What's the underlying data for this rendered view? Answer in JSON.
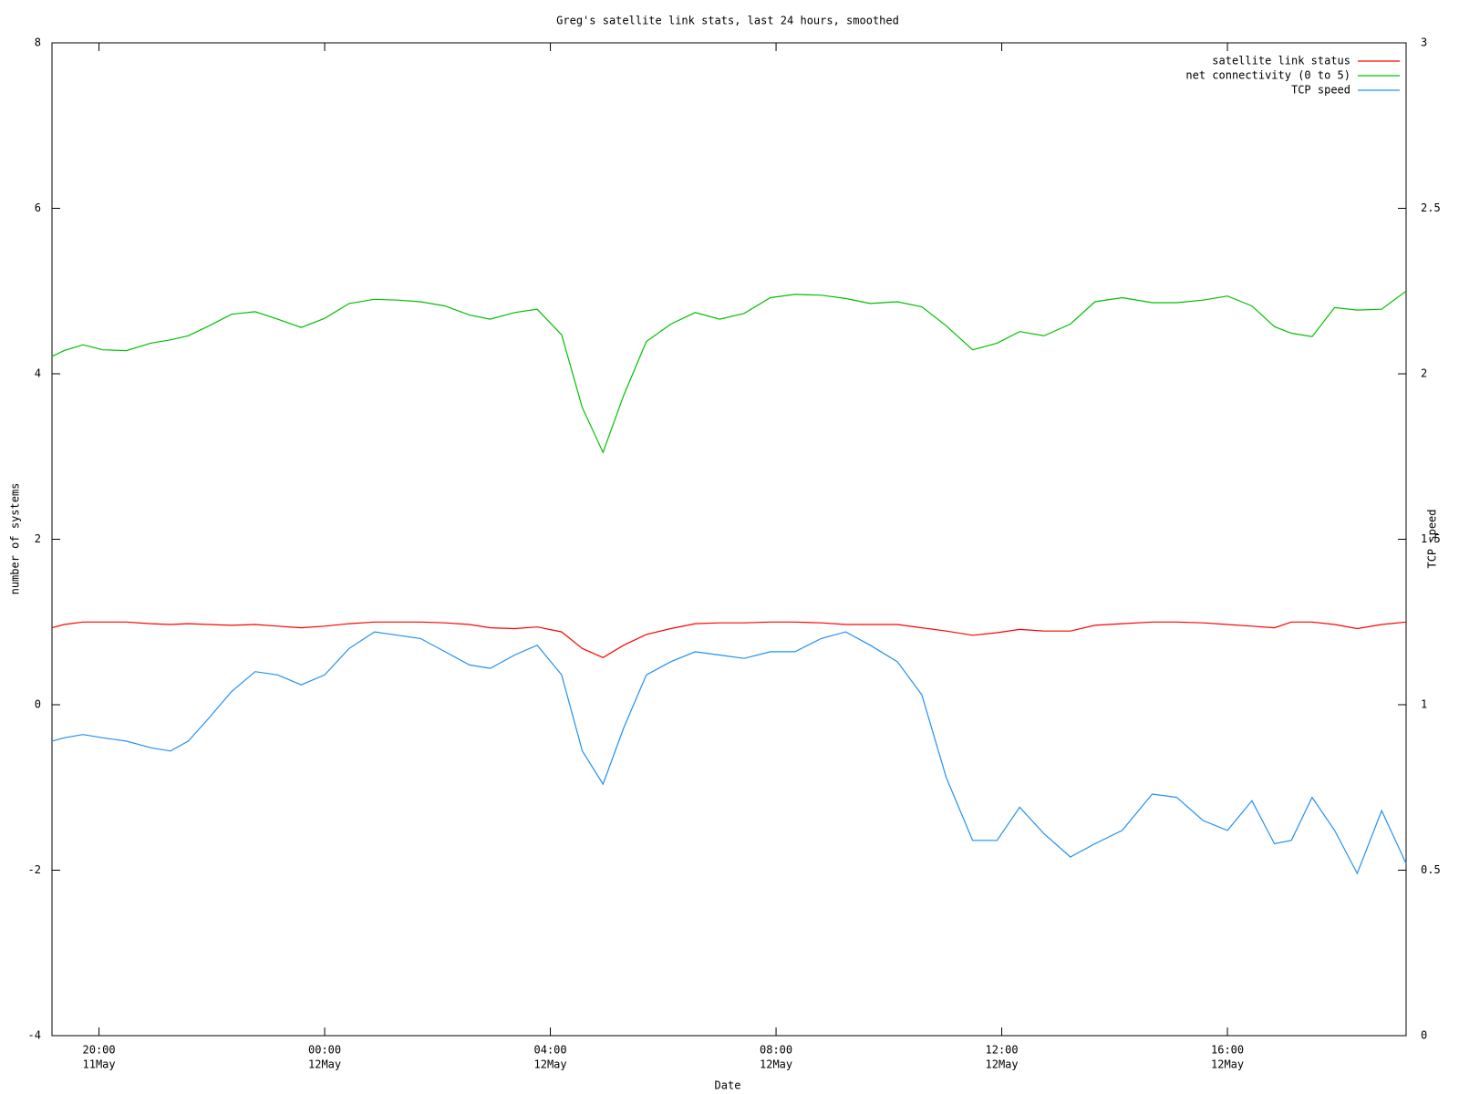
{
  "chart_data": {
    "type": "line",
    "title": "Greg's satellite link stats, last 24 hours, smoothed",
    "xlabel": "Date",
    "ylabel": "number of systems",
    "y2label": "TCP speed",
    "legend": "top right",
    "x": [
      "11May 19:10",
      "11May 19:23",
      "11May 19:43",
      "11May 20:04",
      "11May 20:29",
      "11May 20:55",
      "11May 21:16",
      "11May 21:35",
      "11May 21:57",
      "11May 22:21",
      "11May 22:46",
      "11May 23:10",
      "11May 23:35",
      "12May 00:00",
      "12May 00:26",
      "12May 00:53",
      "12May 01:18",
      "12May 01:42",
      "12May 02:08",
      "12May 02:34",
      "12May 02:56",
      "12May 03:22",
      "12May 03:46",
      "12May 04:12",
      "12May 04:34",
      "12May 04:56",
      "12May 05:18",
      "12May 05:42",
      "12May 06:08",
      "12May 06:34",
      "12May 07:00",
      "12May 07:26",
      "12May 07:54",
      "12May 08:20",
      "12May 08:48",
      "12May 09:14",
      "12May 09:40",
      "12May 10:09",
      "12May 10:35",
      "12May 11:01",
      "12May 11:29",
      "12May 11:55",
      "12May 12:19",
      "12May 12:45",
      "12May 13:13",
      "12May 13:39",
      "12May 14:08",
      "12May 14:40",
      "12May 15:06",
      "12May 15:34",
      "12May 16:00",
      "12May 16:26",
      "12May 16:50",
      "12May 17:08",
      "12May 17:30",
      "12May 17:54",
      "12May 18:18",
      "12May 18:44",
      "12May 19:10"
    ],
    "xlim": [
      "11May 19:10",
      "12May 19:10"
    ],
    "xticks": [
      {
        "value": "11May 20:00",
        "label": [
          "20:00",
          "11May"
        ]
      },
      {
        "value": "12May 00:00",
        "label": [
          "00:00",
          "12May"
        ]
      },
      {
        "value": "12May 04:00",
        "label": [
          "04:00",
          "12May"
        ]
      },
      {
        "value": "12May 08:00",
        "label": [
          "08:00",
          "12May"
        ]
      },
      {
        "value": "12May 12:00",
        "label": [
          "12:00",
          "12May"
        ]
      },
      {
        "value": "12May 16:00",
        "label": [
          "16:00",
          "12May"
        ]
      }
    ],
    "ylim": [
      -4,
      8
    ],
    "yticks": [
      -4,
      -2,
      0,
      2,
      4,
      6,
      8
    ],
    "y2lim": [
      0,
      3
    ],
    "y2ticks": [
      0,
      0.5,
      1,
      1.5,
      2,
      2.5,
      3
    ],
    "series": [
      {
        "name": "satellite link status",
        "color": "#ff0000",
        "values": [
          0.93,
          0.97,
          1.0,
          1.0,
          1.0,
          0.98,
          0.97,
          0.98,
          0.97,
          0.96,
          0.97,
          0.95,
          0.93,
          0.95,
          0.98,
          1.0,
          1.0,
          1.0,
          0.99,
          0.97,
          0.93,
          0.92,
          0.94,
          0.88,
          0.68,
          0.57,
          0.72,
          0.85,
          0.92,
          0.98,
          0.99,
          0.99,
          1.0,
          1.0,
          0.99,
          0.97,
          0.97,
          0.97,
          0.93,
          0.89,
          0.84,
          0.87,
          0.91,
          0.89,
          0.89,
          0.96,
          0.98,
          1.0,
          1.0,
          0.99,
          0.97,
          0.95,
          0.93,
          1.0,
          1.0,
          0.97,
          0.92,
          0.97,
          1.0
        ]
      },
      {
        "name": "net connectivity (0 to 5)",
        "color": "#00c000",
        "values": [
          4.21,
          4.28,
          4.35,
          4.29,
          4.28,
          4.37,
          4.41,
          4.46,
          4.58,
          4.72,
          4.75,
          4.66,
          4.56,
          4.67,
          4.85,
          4.9,
          4.89,
          4.87,
          4.82,
          4.71,
          4.66,
          4.74,
          4.78,
          4.47,
          3.59,
          3.05,
          3.74,
          4.39,
          4.6,
          4.74,
          4.66,
          4.73,
          4.92,
          4.96,
          4.95,
          4.91,
          4.85,
          4.87,
          4.81,
          4.58,
          4.29,
          4.37,
          4.51,
          4.46,
          4.6,
          4.87,
          4.92,
          4.86,
          4.86,
          4.89,
          4.94,
          4.82,
          4.57,
          4.49,
          4.45,
          4.8,
          4.77,
          4.78,
          5.0
        ]
      },
      {
        "name": "TCP speed",
        "color": "#2090f0",
        "axis": "y2",
        "values": [
          0.89,
          0.9,
          0.91,
          0.9,
          0.89,
          0.87,
          0.86,
          0.89,
          0.96,
          1.04,
          1.1,
          1.09,
          1.06,
          1.09,
          1.17,
          1.22,
          1.21,
          1.2,
          1.16,
          1.12,
          1.11,
          1.15,
          1.18,
          1.09,
          0.86,
          0.76,
          0.93,
          1.09,
          1.13,
          1.16,
          1.15,
          1.14,
          1.16,
          1.16,
          1.2,
          1.22,
          1.18,
          1.13,
          1.03,
          0.78,
          0.59,
          0.59,
          0.69,
          0.61,
          0.54,
          0.58,
          0.62,
          0.73,
          0.72,
          0.65,
          0.62,
          0.71,
          0.58,
          0.59,
          0.72,
          0.62,
          0.49,
          0.68,
          0.52
        ]
      }
    ]
  }
}
